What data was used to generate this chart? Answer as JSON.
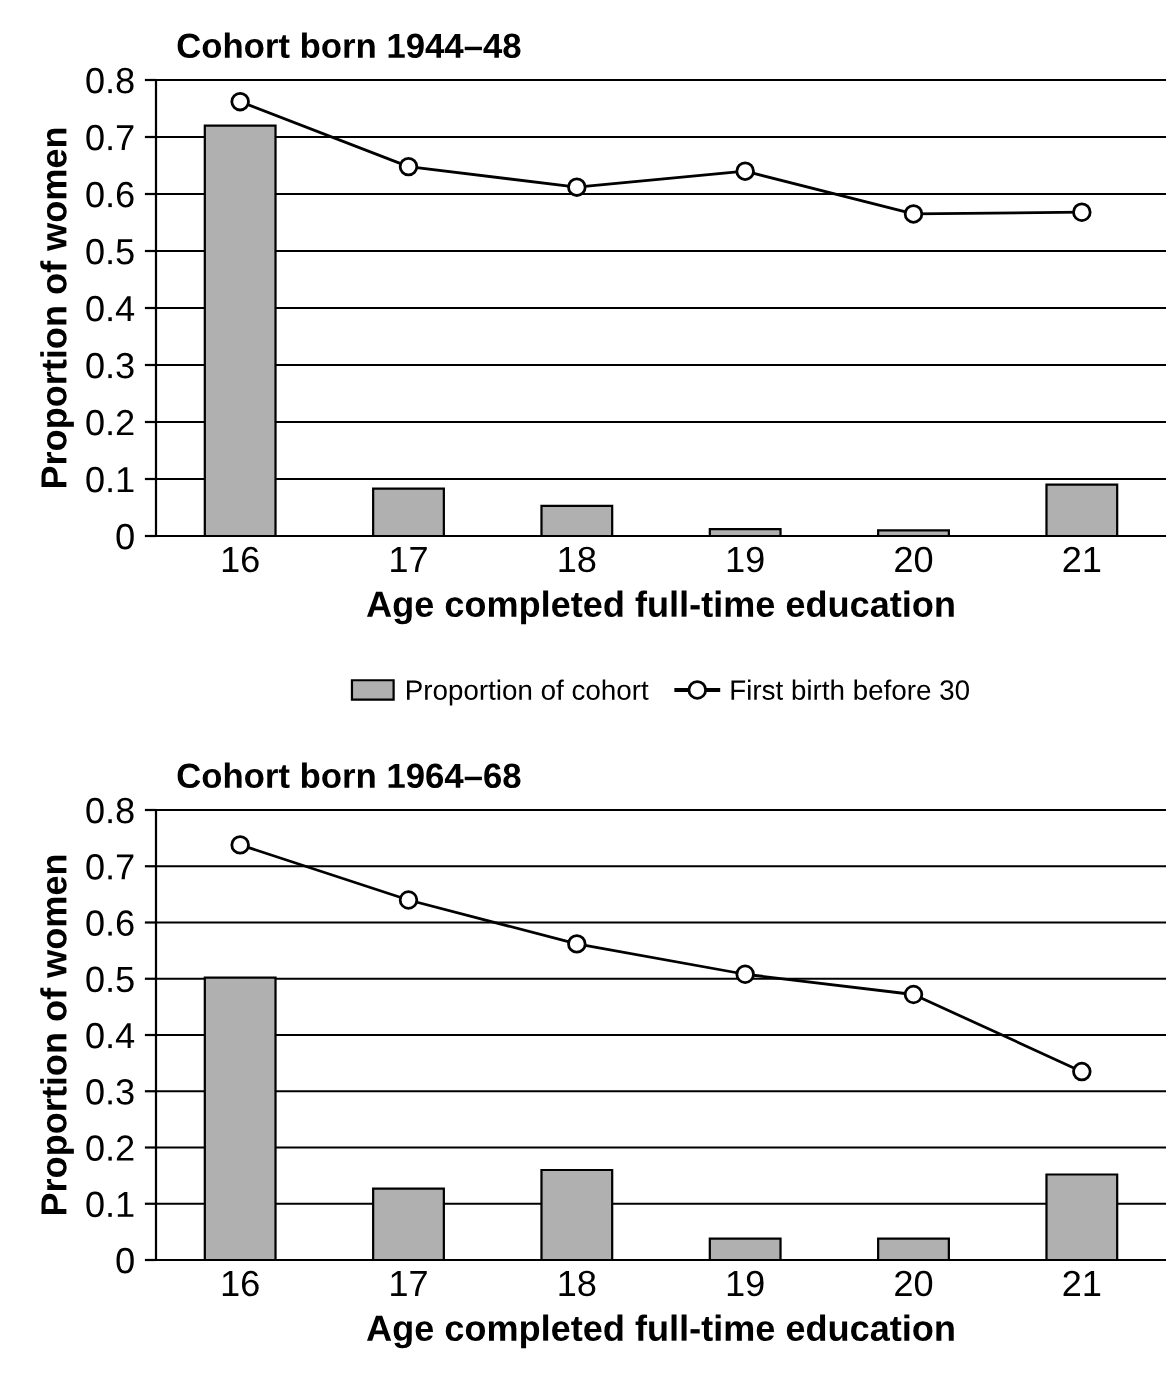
{
  "chart_data": [
    {
      "type": "bar",
      "title": "Cohort born 1944–48",
      "xlabel": "Age completed full-time education",
      "ylabel": "Proportion of women",
      "categories": [
        "16",
        "17",
        "18",
        "19",
        "20",
        "21"
      ],
      "series": [
        {
          "name": "Proportion of cohort",
          "color": "#b0b0b0",
          "values": [
            0.72,
            0.083,
            0.053,
            0.012,
            0.01,
            0.09
          ]
        },
        {
          "name": "First birth before 30",
          "type": "line",
          "color": "#000000",
          "values": [
            0.762,
            0.648,
            0.612,
            0.64,
            0.565,
            0.568
          ]
        }
      ],
      "ylim": [
        0,
        0.8
      ],
      "yticks": [
        0,
        0.1,
        0.2,
        0.3,
        0.4,
        0.5,
        0.6,
        0.7,
        0.8
      ],
      "grid": "y",
      "legend": "bottom",
      "marker": "circle",
      "line_style": "solid"
    },
    {
      "type": "bar",
      "title": "Cohort born 1964–68",
      "xlabel": "Age completed full-time education",
      "ylabel": "Proportion of women",
      "categories": [
        "16",
        "17",
        "18",
        "19",
        "20",
        "21"
      ],
      "series": [
        {
          "color": "#b0b0b0",
          "values": [
            0.502,
            0.127,
            0.16,
            0.038,
            0.038,
            0.152
          ]
        },
        {
          "type": "line",
          "color": "#000000",
          "values": [
            0.738,
            0.64,
            0.562,
            0.508,
            0.472,
            0.335
          ]
        }
      ],
      "ylim": [
        0,
        0.8
      ],
      "yticks": [
        0,
        0.1,
        0.2,
        0.3,
        0.4,
        0.5,
        0.6,
        0.7,
        0.8
      ],
      "grid": "y",
      "marker": "circle",
      "line_style": "solid"
    }
  ]
}
